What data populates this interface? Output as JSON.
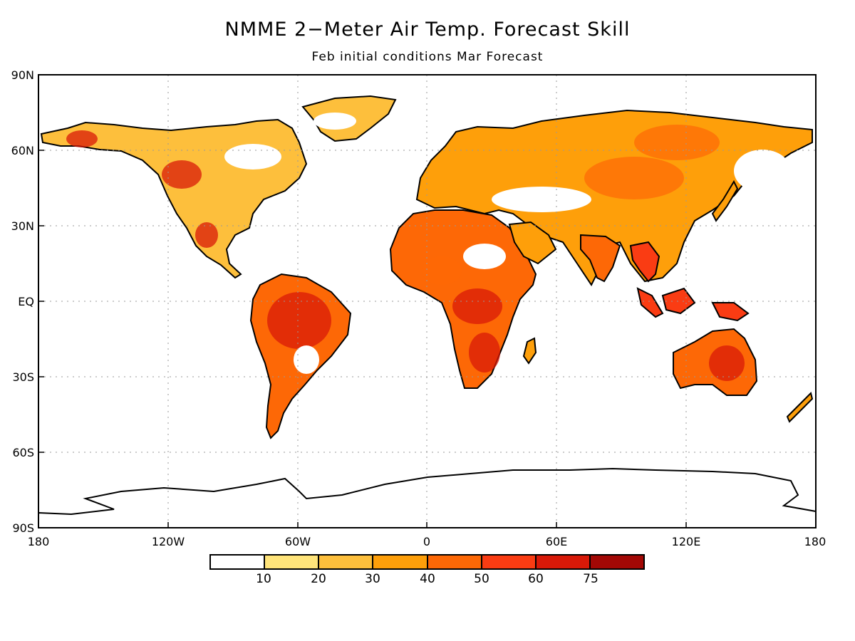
{
  "title": "NMME 2−Meter Air Temp. Forecast Skill",
  "subtitle": "Feb initial conditions  Mar Forecast",
  "lat_labels": [
    "90N",
    "60N",
    "30N",
    "EQ",
    "30S",
    "60S",
    "90S"
  ],
  "lon_labels": [
    "180",
    "120W",
    "60W",
    "0",
    "60E",
    "120E",
    "180"
  ],
  "colorbar": {
    "colors": [
      "#ffffff",
      "#ffe47a",
      "#fdbf3c",
      "#fe9f0a",
      "#fd6806",
      "#fa3c13",
      "#d81908",
      "#a30805"
    ],
    "labels": [
      "10",
      "20",
      "30",
      "40",
      "50",
      "60",
      "75"
    ]
  },
  "skill_colors": {
    "low": "#ffe47a",
    "mid": "#fdbf3c",
    "orange": "#fe9f0a",
    "high": "#fd6806",
    "red": "#fa3c13",
    "darkred": "#d81908"
  }
}
